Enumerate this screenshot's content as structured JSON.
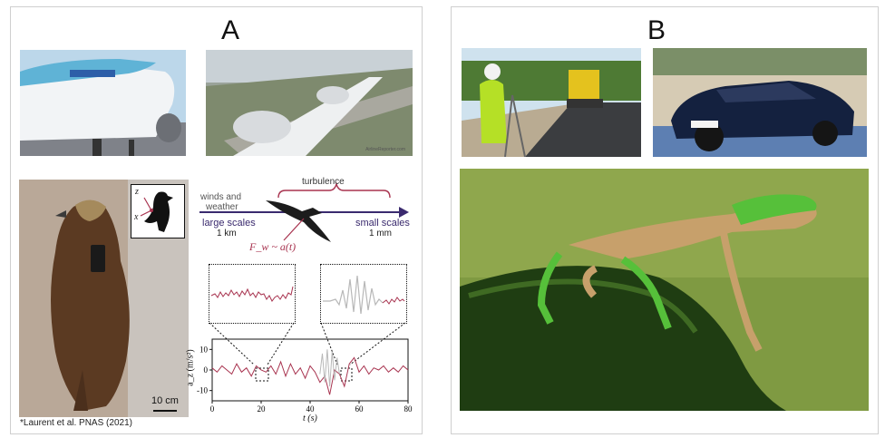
{
  "panels": {
    "left_label": "A",
    "right_label": "B"
  },
  "figure_a": {
    "photo_credit": "AirlineReporter.com",
    "scale_bar_label": "10 cm",
    "citation": "*Laurent et al. PNAS (2021)",
    "axes_inset": {
      "z": "z",
      "x": "x"
    },
    "diagram": {
      "winds_label_line1": "winds and",
      "winds_label_line2": "weather",
      "turbulence_label": "turbulence",
      "large_scales_line1": "large scales",
      "large_scales_line2": "1 km",
      "small_scales_line1": "small scales",
      "small_scales_line2": "1 mm",
      "force_label": "F_w ~ a(t)",
      "colors": {
        "arrow": "#3a2a6e",
        "accent": "#a8334f",
        "gray": "#b8b8b8"
      }
    },
    "timeseries": {
      "ylabel": "a_z  (m/s²)",
      "xlabel": "t  (s)",
      "x_ticks": [
        "0",
        "20",
        "40",
        "60",
        "80"
      ],
      "y_ticks": [
        "10",
        "0",
        "-10"
      ]
    }
  },
  "chart_data": {
    "type": "line",
    "xlabel": "t (s)",
    "ylabel": "a_z (m/s²)",
    "xlim": [
      0,
      80
    ],
    "ylim": [
      -15,
      15
    ],
    "x_ticks": [
      0,
      20,
      40,
      60,
      80
    ],
    "y_ticks": [
      10,
      0,
      -10
    ],
    "series": [
      {
        "color": "#a8334f",
        "x": [
          0,
          2,
          4,
          6,
          8,
          10,
          12,
          14,
          16,
          18,
          20,
          22,
          24,
          26,
          28,
          30,
          32,
          34,
          36,
          38,
          40,
          42,
          44,
          46,
          48,
          50,
          52,
          54,
          56,
          58,
          60,
          62,
          64,
          66,
          68,
          70,
          72,
          74,
          76,
          78,
          80
        ],
        "values": [
          1,
          -1,
          2,
          0,
          -2,
          3,
          -1,
          1,
          -3,
          2,
          0,
          -1,
          2,
          -2,
          4,
          -3,
          3,
          -2,
          1,
          -4,
          2,
          -1,
          -6,
          -3,
          -12,
          0,
          -2,
          -8,
          3,
          6,
          -1,
          2,
          -2,
          1,
          0,
          2,
          -1,
          1,
          -1,
          2,
          0
        ]
      },
      {
        "color": "#b8b8b8",
        "x": [
          44,
          45,
          46,
          47,
          48,
          49,
          50,
          51,
          52
        ],
        "values": [
          -2,
          8,
          -6,
          10,
          -8,
          9,
          -5,
          6,
          -2
        ]
      }
    ]
  }
}
